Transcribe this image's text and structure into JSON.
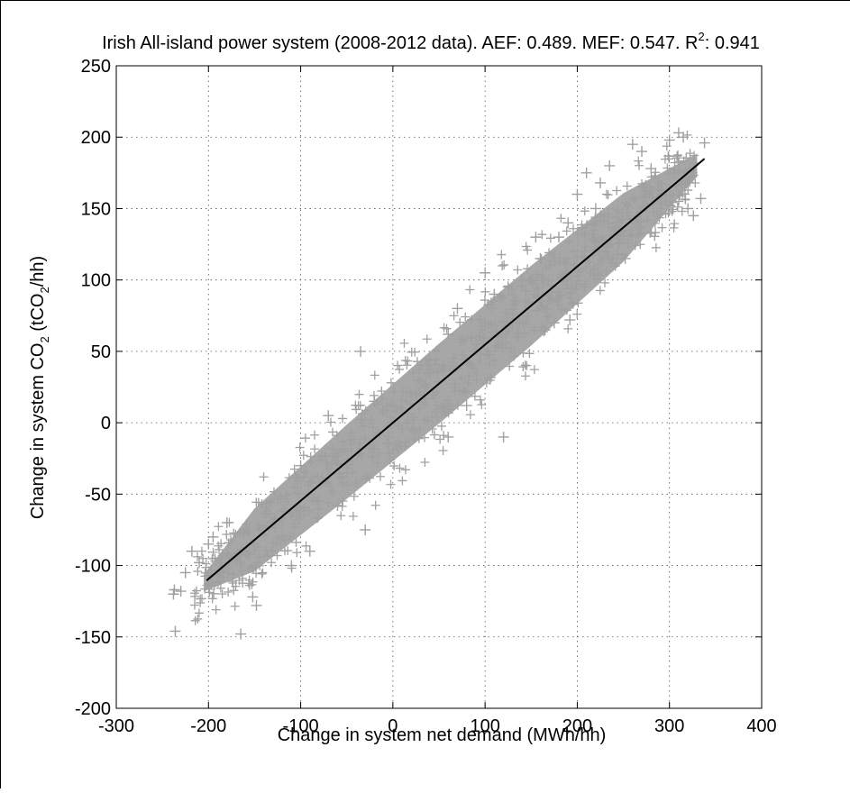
{
  "chart_data": {
    "type": "scatter",
    "title_main": "Irish All-island power system (2008-2012 data). AEF: 0.489. MEF: 0.547. R",
    "title_sup": "2",
    "title_end": ": 0.941",
    "xlabel": "Change in system net demand (MWh/hh)",
    "ylabel_pre": "Change in system CO",
    "ylabel_sub": "2",
    "ylabel_post": " (tCO",
    "ylabel_sub2": "2",
    "ylabel_end": "/hh)",
    "xlim": [
      -300,
      400
    ],
    "ylim": [
      -200,
      250
    ],
    "x_ticks": [
      -300,
      -200,
      -100,
      0,
      100,
      200,
      300,
      400
    ],
    "y_ticks": [
      -200,
      -150,
      -100,
      -50,
      0,
      50,
      100,
      150,
      200,
      250
    ],
    "x_tick_labels": [
      "-300",
      "-200",
      "-100",
      "0",
      "100",
      "200",
      "300",
      "400"
    ],
    "y_tick_labels": [
      "-200",
      "-150",
      "-100",
      "-50",
      "0",
      "50",
      "100",
      "150",
      "200",
      "250"
    ],
    "grid": true,
    "series": [
      {
        "marker": "+",
        "color": "#a0a0a0",
        "points": [
          [
            -237,
            -117
          ],
          [
            -238,
            -120
          ],
          [
            -236,
            -146
          ],
          [
            -225,
            -105
          ],
          [
            -218,
            -90
          ],
          [
            -210,
            -98
          ],
          [
            -200,
            -85
          ],
          [
            -165,
            -148
          ],
          [
            -152,
            -122
          ],
          [
            -148,
            -128
          ],
          [
            -140,
            -75
          ],
          [
            -120,
            -62
          ],
          [
            -110,
            -100
          ],
          [
            -90,
            -90
          ],
          [
            -80,
            -55
          ],
          [
            -60,
            -58
          ],
          [
            -50,
            -35
          ],
          [
            -35,
            50
          ],
          [
            -20,
            15
          ],
          [
            -5,
            -15
          ],
          [
            10,
            10
          ],
          [
            25,
            20
          ],
          [
            40,
            35
          ],
          [
            55,
            40
          ],
          [
            60,
            62
          ],
          [
            70,
            80
          ],
          [
            80,
            12
          ],
          [
            85,
            60
          ],
          [
            90,
            55
          ],
          [
            100,
            70
          ],
          [
            110,
            90
          ],
          [
            115,
            60
          ],
          [
            120,
            -10
          ],
          [
            125,
            95
          ],
          [
            130,
            70
          ],
          [
            140,
            100
          ],
          [
            150,
            100
          ],
          [
            155,
            130
          ],
          [
            160,
            115
          ],
          [
            170,
            110
          ],
          [
            180,
            130
          ],
          [
            190,
            140
          ],
          [
            200,
            160
          ],
          [
            210,
            175
          ],
          [
            220,
            150
          ],
          [
            225,
            168
          ],
          [
            235,
            180
          ],
          [
            245,
            140
          ],
          [
            252,
            115
          ],
          [
            260,
            195
          ],
          [
            270,
            190
          ],
          [
            280,
            178
          ],
          [
            300,
            198
          ],
          [
            305,
            175
          ],
          [
            310,
            203
          ],
          [
            315,
            200
          ],
          [
            320,
            150
          ],
          [
            326,
            145
          ],
          [
            338,
            196
          ],
          [
            334,
            157
          ],
          [
            100,
            105
          ],
          [
            95,
            48
          ],
          [
            60,
            -10
          ],
          [
            135,
            60
          ],
          [
            175,
            70
          ],
          [
            192,
            72
          ],
          [
            165,
            65
          ],
          [
            -70,
            5
          ],
          [
            -30,
            -75
          ],
          [
            -45,
            -20
          ],
          [
            -100,
            -30
          ],
          [
            -180,
            -70
          ],
          [
            -195,
            -80
          ],
          [
            -230,
            -118
          ]
        ]
      }
    ],
    "fit_line": {
      "x": [
        -202,
        338
      ],
      "y": [
        -110.5,
        184.9
      ],
      "color": "#000000",
      "slope": 0.547
    }
  }
}
